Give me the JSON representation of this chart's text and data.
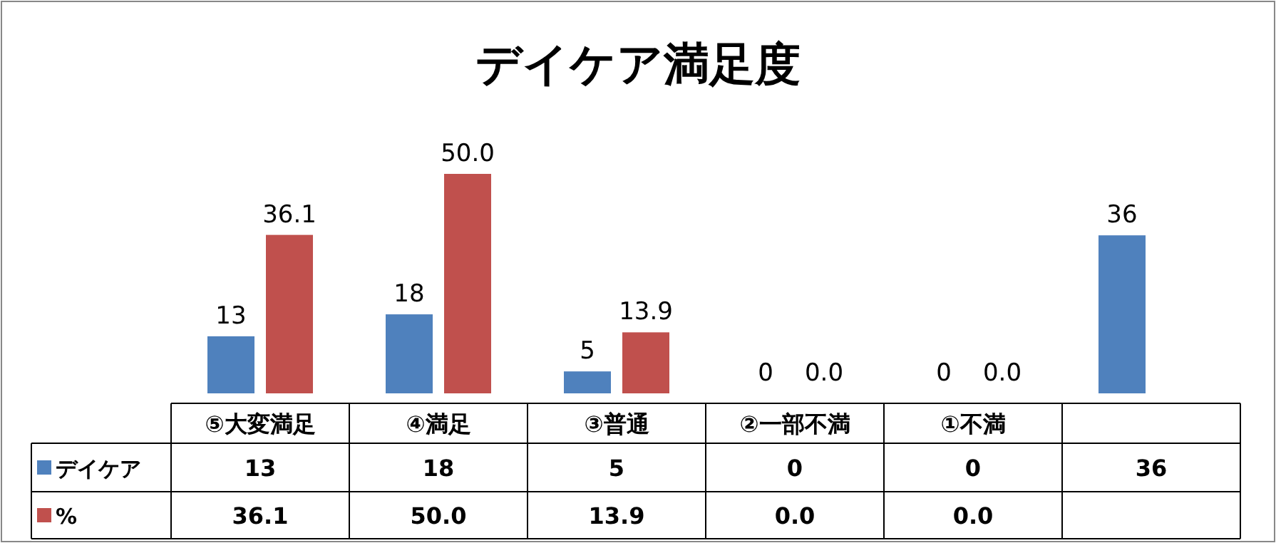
{
  "chart_data": {
    "type": "bar",
    "title": "デイケア満足度",
    "legend": "bottom left",
    "categories": [
      "⑤大変満足",
      "④満足",
      "③普通",
      "②一部不満",
      "①不満",
      null
    ],
    "series": [
      {
        "name": "デイケア",
        "color": "#4f81bd",
        "values": [
          13,
          18,
          5,
          0,
          0,
          36
        ],
        "value_labels": [
          "13",
          "18",
          "5",
          "0",
          "0",
          "36"
        ]
      },
      {
        "name": "%",
        "color": "#c0504d",
        "values": [
          36.1,
          50.0,
          13.9,
          0.0,
          0.0,
          null
        ],
        "value_labels": [
          "36.1",
          "50.0",
          "13.9",
          "0.0",
          "0.0",
          null
        ]
      }
    ]
  }
}
